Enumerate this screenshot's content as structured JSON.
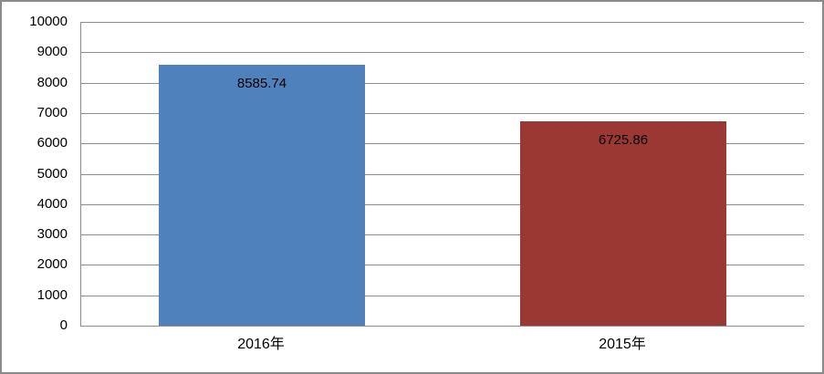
{
  "chart_data": {
    "type": "bar",
    "categories": [
      "2016年",
      "2015年"
    ],
    "values": [
      8585.74,
      6725.86
    ],
    "data_labels": [
      "8585.74",
      "6725.86"
    ],
    "bar_colors": [
      "#4F81BD",
      "#9B3834"
    ],
    "title": "",
    "xlabel": "",
    "ylabel": "",
    "ylim": [
      0,
      10000
    ],
    "ytick_step": 1000,
    "ytick_labels": [
      "0",
      "1000",
      "2000",
      "3000",
      "4000",
      "5000",
      "6000",
      "7000",
      "8000",
      "9000",
      "10000"
    ],
    "grid": "horizontal-on",
    "legend": "none"
  },
  "colors": {
    "grid_line": "#8C8C8C",
    "axis_line": "#8C8C8C",
    "frame_border": "#8A8A8A",
    "background": "#FFFFFF",
    "label_text": "#000000"
  }
}
